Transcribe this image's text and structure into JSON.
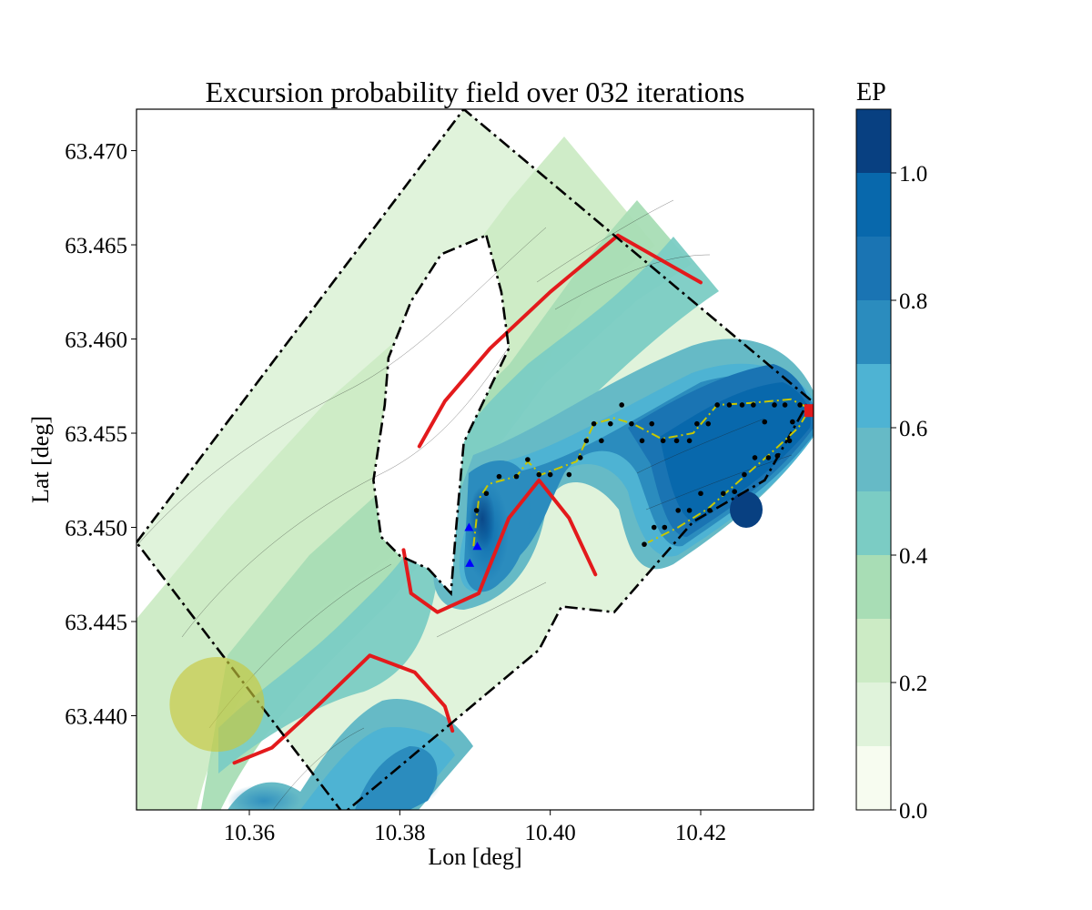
{
  "chart_data": {
    "type": "contour-map",
    "title": "Excursion probability field over 032 iterations",
    "xlabel": "Lon [deg]",
    "ylabel": "Lat [deg]",
    "xlim": [
      10.345,
      10.435
    ],
    "ylim": [
      63.435,
      63.4722
    ],
    "xticks": [
      {
        "value": 10.36,
        "label": "10.36"
      },
      {
        "value": 10.38,
        "label": "10.38"
      },
      {
        "value": 10.4,
        "label": "10.40"
      },
      {
        "value": 10.42,
        "label": "10.42"
      }
    ],
    "yticks": [
      {
        "value": 63.44,
        "label": "63.440"
      },
      {
        "value": 63.445,
        "label": "63.445"
      },
      {
        "value": 63.45,
        "label": "63.450"
      },
      {
        "value": 63.455,
        "label": "63.455"
      },
      {
        "value": 63.46,
        "label": "63.460"
      },
      {
        "value": 63.465,
        "label": "63.465"
      },
      {
        "value": 63.47,
        "label": "63.470"
      }
    ],
    "colorbar": {
      "title": "EP",
      "range": [
        0.0,
        1.1
      ],
      "levels": [
        0.0,
        0.1,
        0.2,
        0.3,
        0.4,
        0.5,
        0.6,
        0.7,
        0.8,
        0.9,
        1.0,
        1.1
      ],
      "colors": [
        "#f7fcf0",
        "#e0f3db",
        "#ccebc5",
        "#a8ddb5",
        "#7bccc4",
        "#66bac6",
        "#4eb3d3",
        "#2b8cbe",
        "#1a74b3",
        "#0868ac",
        "#084081"
      ],
      "ticks": [
        {
          "value": 0.0,
          "label": "0.0"
        },
        {
          "value": 0.2,
          "label": "0.2"
        },
        {
          "value": 0.4,
          "label": "0.4"
        },
        {
          "value": 0.6,
          "label": "0.6"
        },
        {
          "value": 0.8,
          "label": "0.8"
        },
        {
          "value": 1.0,
          "label": "1.0"
        }
      ]
    },
    "colors": {
      "threshold_contour": "#e31a1c",
      "boundary": "#000000",
      "trajectory": "#c8c800",
      "waypoints": "#000000",
      "markers": "#0000ff",
      "current_position": "#e31a1c",
      "start_region": "#c8c83c"
    },
    "boundary": [
      [
        10.345,
        63.4492
      ],
      [
        10.3885,
        63.4722
      ],
      [
        10.4345,
        63.4568
      ],
      [
        10.4285,
        63.4525
      ],
      [
        10.419,
        63.4503
      ],
      [
        10.4085,
        63.4455
      ],
      [
        10.4015,
        63.4458
      ],
      [
        10.3985,
        63.4435
      ],
      [
        10.3725,
        63.4348
      ]
    ],
    "island": [
      [
        10.3915,
        63.4655
      ],
      [
        10.3935,
        63.4625
      ],
      [
        10.3945,
        63.4595
      ],
      [
        10.3915,
        63.457
      ],
      [
        10.3885,
        63.4545
      ],
      [
        10.3875,
        63.45
      ],
      [
        10.3868,
        63.4465
      ],
      [
        10.3838,
        63.4478
      ],
      [
        10.38,
        63.4485
      ],
      [
        10.3775,
        63.4495
      ],
      [
        10.3765,
        63.4525
      ],
      [
        10.378,
        63.4565
      ],
      [
        10.3785,
        63.459
      ],
      [
        10.3815,
        63.462
      ],
      [
        10.3855,
        63.4645
      ]
    ],
    "threshold_contours": [
      [
        [
          10.3826,
          63.4543
        ],
        [
          10.386,
          63.4567
        ],
        [
          10.392,
          63.4595
        ],
        [
          10.4,
          63.4625
        ],
        [
          10.409,
          63.4655
        ],
        [
          10.42,
          63.463
        ]
      ],
      [
        [
          10.3805,
          63.4488
        ],
        [
          10.3815,
          63.4465
        ],
        [
          10.385,
          63.4455
        ],
        [
          10.3905,
          63.4465
        ],
        [
          10.3945,
          63.4505
        ],
        [
          10.3985,
          63.4525
        ],
        [
          10.4025,
          63.4505
        ],
        [
          10.406,
          63.4475
        ]
      ],
      [
        [
          10.358,
          63.4375
        ],
        [
          10.363,
          63.4383
        ],
        [
          10.369,
          63.4405
        ],
        [
          10.376,
          63.4432
        ],
        [
          10.382,
          63.4423
        ],
        [
          10.386,
          63.4405
        ],
        [
          10.387,
          63.4392
        ]
      ]
    ],
    "waypoints": [
      [
        10.3902,
        63.4509
      ],
      [
        10.3915,
        63.4518
      ],
      [
        10.3932,
        63.4527
      ],
      [
        10.3955,
        63.4527
      ],
      [
        10.397,
        63.4536
      ],
      [
        10.3985,
        63.4528
      ],
      [
        10.4,
        63.4528
      ],
      [
        10.4025,
        63.4528
      ],
      [
        10.404,
        63.4537
      ],
      [
        10.4048,
        63.4546
      ],
      [
        10.4058,
        63.4555
      ],
      [
        10.4068,
        63.4546
      ],
      [
        10.408,
        63.4555
      ],
      [
        10.4095,
        63.4565
      ],
      [
        10.4108,
        63.4555
      ],
      [
        10.4122,
        63.4546
      ],
      [
        10.4135,
        63.4555
      ],
      [
        10.415,
        63.4546
      ],
      [
        10.4168,
        63.4546
      ],
      [
        10.4185,
        63.4546
      ],
      [
        10.4195,
        63.4555
      ],
      [
        10.421,
        63.4555
      ],
      [
        10.4222,
        63.4565
      ],
      [
        10.4238,
        63.4565
      ],
      [
        10.4255,
        63.4565
      ],
      [
        10.427,
        63.4565
      ],
      [
        10.4285,
        63.4556
      ],
      [
        10.4298,
        63.4565
      ],
      [
        10.4312,
        63.4565
      ],
      [
        10.4322,
        63.4556
      ],
      [
        10.4332,
        63.4565
      ],
      [
        10.4318,
        63.4546
      ],
      [
        10.4302,
        63.4538
      ],
      [
        10.429,
        63.4537
      ],
      [
        10.4272,
        63.4537
      ],
      [
        10.4258,
        63.4528
      ],
      [
        10.4245,
        63.4519
      ],
      [
        10.423,
        63.4518
      ],
      [
        10.4212,
        63.4509
      ],
      [
        10.42,
        63.4518
      ],
      [
        10.4185,
        63.4509
      ],
      [
        10.417,
        63.4509
      ],
      [
        10.4152,
        63.45
      ],
      [
        10.4138,
        63.45
      ],
      [
        10.4125,
        63.4491
      ]
    ],
    "trajectory": [
      [
        10.3898,
        63.449
      ],
      [
        10.3905,
        63.4515
      ],
      [
        10.3918,
        63.4523
      ],
      [
        10.3955,
        63.4527
      ],
      [
        10.397,
        63.4535
      ],
      [
        10.3988,
        63.4528
      ],
      [
        10.4035,
        63.4535
      ],
      [
        10.4058,
        63.4555
      ],
      [
        10.4085,
        63.4558
      ],
      [
        10.411,
        63.4555
      ],
      [
        10.4148,
        63.4547
      ],
      [
        10.419,
        63.455
      ],
      [
        10.4222,
        63.4565
      ],
      [
        10.4265,
        63.4566
      ],
      [
        10.432,
        63.4568
      ],
      [
        10.4345,
        63.4563
      ],
      [
        10.433,
        63.4553
      ],
      [
        10.4295,
        63.454
      ],
      [
        10.4255,
        63.4526
      ],
      [
        10.421,
        63.451
      ],
      [
        10.417,
        63.45
      ],
      [
        10.413,
        63.4492
      ]
    ],
    "markers": [
      [
        10.3892,
        63.45
      ],
      [
        10.3903,
        63.449
      ],
      [
        10.3893,
        63.4481
      ]
    ],
    "current_position": [
      10.4345,
      63.4562
    ],
    "start_region": {
      "center": [
        10.3557,
        63.4406
      ],
      "radius_deg": 0.0063
    }
  }
}
